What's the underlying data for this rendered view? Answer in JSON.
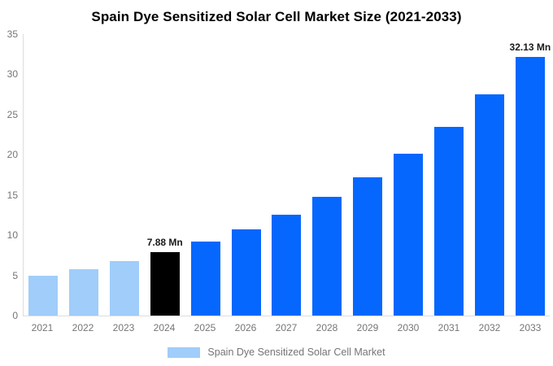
{
  "title": "Spain Dye Sensitized Solar Cell Market Size (2021-2033)",
  "legend": {
    "label": "Spain Dye Sensitized Solar Cell Market",
    "swatch_color": "#A0CDFA"
  },
  "colors": {
    "historical_bar": "#A0CDFA",
    "highlight_bar": "#000000",
    "forecast_bar": "#0667FE",
    "axis_line": "#DDDDDD",
    "tick_label": "#757575",
    "annotation_text": "#1A1A1A",
    "title_text": "#000000",
    "background": "#FFFFFF"
  },
  "chart_data": {
    "type": "bar",
    "title": "Spain Dye Sensitized Solar Cell Market Size (2021-2033)",
    "xlabel": "",
    "ylabel": "",
    "grid": false,
    "legend_position": "bottom",
    "ylim": [
      0,
      35
    ],
    "yticks": [
      0,
      5,
      10,
      15,
      20,
      25,
      30,
      35
    ],
    "categories": [
      "2021",
      "2022",
      "2023",
      "2024",
      "2025",
      "2026",
      "2027",
      "2028",
      "2029",
      "2030",
      "2031",
      "2032",
      "2033"
    ],
    "values": [
      4.93,
      5.77,
      6.74,
      7.88,
      9.21,
      10.77,
      12.59,
      14.72,
      17.21,
      20.12,
      23.52,
      27.49,
      32.13
    ],
    "unit": "Mn",
    "bar_colors": [
      "#A0CDFA",
      "#A0CDFA",
      "#A0CDFA",
      "#000000",
      "#0667FE",
      "#0667FE",
      "#0667FE",
      "#0667FE",
      "#0667FE",
      "#0667FE",
      "#0667FE",
      "#0667FE",
      "#0667FE"
    ],
    "annotations": [
      {
        "category": "2024",
        "index": 3,
        "label": "7.88 Mn"
      },
      {
        "category": "2033",
        "index": 12,
        "label": "32.13 Mn"
      }
    ],
    "series": [
      {
        "name": "Spain Dye Sensitized Solar Cell Market",
        "values": [
          4.93,
          5.77,
          6.74,
          7.88,
          9.21,
          10.77,
          12.59,
          14.72,
          17.21,
          20.12,
          23.52,
          27.49,
          32.13
        ]
      }
    ]
  }
}
